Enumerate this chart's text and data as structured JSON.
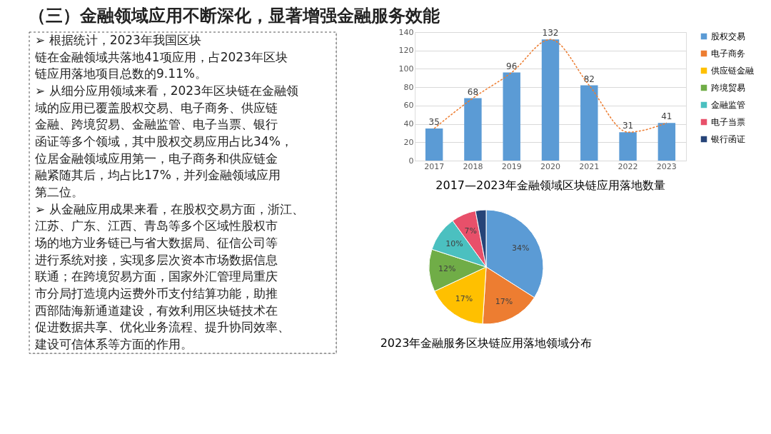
{
  "chart_data": [
    {
      "type": "other",
      "title": "（三）金融领域应用不断深化，显著增强金融服务效能",
      "annotations": [
        "➢ 根据统计，2023年我国区块",
        "链在金融领域共落地41项应用，占2023年区块",
        "链应用落地项目总数的9.11%。",
        "➢ 从细分应用领域来看，2023年区块链在金融领",
        "域的应用已覆盖股权交易、电子商务、供应链",
        "金融、跨境贸易、金融监管、电子当票、银行",
        "函证等多个领域，其中股权交易应用占比34%，",
        "位居金融领域应用第一，电子商务和供应链金",
        "融紧随其后，均占比17%，并列金融领域应用",
        "第二位。",
        "➢ 从金融应用成果来看，在股权交易方面，浙江、",
        "江苏、广东、江西、青岛等多个区域性股权市",
        "场的地方业务链已与省大数据局、征信公司等",
        "进行系统对接，实现多层次资本市场数据信息",
        "联通；在跨境贸易方面，国家外汇管理局重庆",
        "市分局打造境内运费外币支付结算功能，助推",
        "西部陆海新通道建设，有效利用区块链技术在",
        "促进数据共享、优化业务流程、提升协同效率、",
        "建设可信体系等方面的作用。"
      ]
    },
    {
      "type": "bar",
      "title": "2017—2023年金融领域区块链应用落地数量",
      "categories": [
        "2017",
        "2018",
        "2019",
        "2020",
        "2021",
        "2022",
        "2023"
      ],
      "ylim": [
        0,
        140
      ],
      "yticks": [
        0,
        20,
        40,
        60,
        80,
        100,
        120,
        140
      ],
      "grid": "y",
      "series": [
        {
          "type": "bar",
          "color": "#5b9bd5",
          "values": [
            35,
            68,
            96,
            132,
            82,
            31,
            41
          ],
          "data_labels": true
        },
        {
          "type": "line",
          "color": "#ed7d31",
          "line_style": "dashed",
          "marker": "none",
          "values": [
            35,
            68,
            96,
            132,
            82,
            31,
            41
          ]
        }
      ]
    },
    {
      "type": "pie",
      "title": "2023年金融服务区块链应用落地领域分布",
      "categories": [
        "股权交易",
        "电子商务",
        "供应链金融",
        "跨境贸易",
        "金融监管",
        "电子当票",
        "银行函证"
      ],
      "values": [
        34,
        17,
        17,
        12,
        10,
        7,
        3
      ],
      "value_labels": [
        "34%",
        "17%",
        "17%",
        "12%",
        "10%",
        "7%",
        null
      ],
      "colors": [
        "#5b9bd5",
        "#ed7d31",
        "#ffc000",
        "#70ad47",
        "#4bc0c0",
        "#e8506a",
        "#264478"
      ],
      "legend": "right"
    }
  ]
}
